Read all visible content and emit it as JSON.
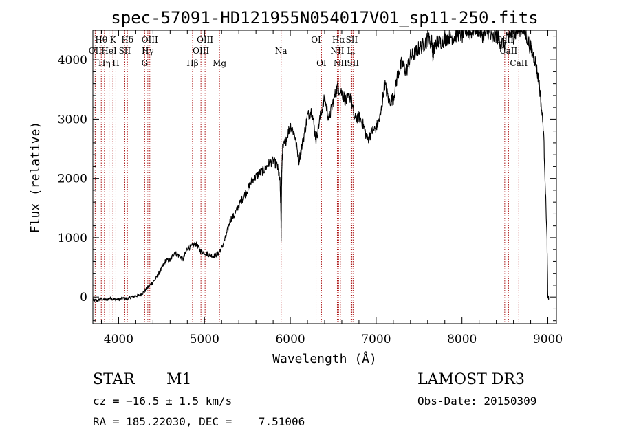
{
  "chart_data": {
    "type": "line",
    "title": "spec-57091-HD121955N054017V01_sp11-250.fits",
    "xlabel": "Wavelength (Å)",
    "ylabel": "Flux (relative)",
    "xlim": [
      3700,
      9100
    ],
    "ylim": [
      -450,
      4500
    ],
    "xticks": [
      4000,
      5000,
      6000,
      7000,
      8000,
      9000
    ],
    "yticks": [
      0,
      1000,
      2000,
      3000,
      4000
    ],
    "x_tick_labels": [
      "4000",
      "5000",
      "6000",
      "7000",
      "8000",
      "9000"
    ],
    "y_tick_labels": [
      "0",
      "1000",
      "2000",
      "3000",
      "4000"
    ],
    "spectrum": {
      "name": "flux",
      "x": [
        3700,
        3750,
        3800,
        3850,
        3900,
        3950,
        4000,
        4050,
        4100,
        4150,
        4200,
        4250,
        4300,
        4350,
        4400,
        4450,
        4500,
        4550,
        4600,
        4650,
        4700,
        4750,
        4800,
        4850,
        4900,
        4950,
        5000,
        5050,
        5100,
        5150,
        5200,
        5250,
        5300,
        5350,
        5400,
        5450,
        5500,
        5550,
        5600,
        5650,
        5700,
        5750,
        5800,
        5850,
        5880,
        5890,
        5893,
        5896,
        5900,
        5910,
        5950,
        6000,
        6050,
        6100,
        6150,
        6200,
        6250,
        6300,
        6350,
        6400,
        6450,
        6500,
        6550,
        6600,
        6650,
        6700,
        6750,
        6800,
        6850,
        6900,
        6950,
        7000,
        7050,
        7100,
        7150,
        7200,
        7250,
        7300,
        7350,
        7400,
        7450,
        7500,
        7550,
        7600,
        7650,
        7660,
        7670,
        7700,
        7750,
        7800,
        7850,
        7900,
        7950,
        8000,
        8050,
        8100,
        8150,
        8200,
        8250,
        8300,
        8350,
        8400,
        8450,
        8500,
        8550,
        8600,
        8650,
        8700,
        8750,
        8800,
        8850,
        8900,
        8950,
        8990,
        9000,
        9005,
        9010
      ],
      "y": [
        -50,
        -60,
        -30,
        -50,
        -20,
        -40,
        -40,
        -20,
        -30,
        0,
        20,
        30,
        90,
        180,
        250,
        350,
        480,
        620,
        620,
        750,
        700,
        630,
        820,
        850,
        900,
        780,
        750,
        720,
        690,
        720,
        820,
        1020,
        1300,
        1380,
        1550,
        1680,
        1800,
        1950,
        2030,
        2100,
        2150,
        2250,
        2300,
        2200,
        1950,
        1400,
        950,
        1500,
        2100,
        2500,
        2650,
        2900,
        2750,
        2300,
        2650,
        3050,
        3150,
        2650,
        3050,
        3350,
        3000,
        3300,
        3550,
        3450,
        3300,
        3400,
        3000,
        3050,
        2900,
        2650,
        2800,
        2850,
        3050,
        3600,
        3300,
        3350,
        3750,
        3950,
        3800,
        4050,
        4100,
        4200,
        4250,
        4350,
        4300,
        4100,
        4150,
        4300,
        4300,
        4350,
        4400,
        4380,
        4450,
        4400,
        4500,
        4450,
        4550,
        4500,
        4400,
        4480,
        4350,
        4420,
        4300,
        4250,
        4450,
        4400,
        4500,
        4550,
        4400,
        4200,
        4000,
        3600,
        2800,
        1000,
        0,
        0,
        -20
      ]
    },
    "emission_lines": [
      {
        "name": "Hθ",
        "wavelength": 3798,
        "row": 1
      },
      {
        "name": "OII",
        "wavelength": 3727,
        "row": 2
      },
      {
        "name": "Hη",
        "wavelength": 3835,
        "row": 3
      },
      {
        "name": "HeI",
        "wavelength": 3889,
        "row": 2
      },
      {
        "name": "K",
        "wavelength": 3934,
        "row": 1
      },
      {
        "name": "SII",
        "wavelength": 4072,
        "row": 2
      },
      {
        "name": "H",
        "wavelength": 3968,
        "row": 3
      },
      {
        "name": "Hδ",
        "wavelength": 4102,
        "row": 1
      },
      {
        "name": "OIII",
        "wavelength": 4363,
        "row": 1
      },
      {
        "name": "Hγ",
        "wavelength": 4340,
        "row": 2
      },
      {
        "name": "G",
        "wavelength": 4304,
        "row": 3
      },
      {
        "name": "Hβ",
        "wavelength": 4861,
        "row": 3
      },
      {
        "name": "OIII",
        "wavelength": 5007,
        "row": 1
      },
      {
        "name": "OIII",
        "wavelength": 4959,
        "row": 2
      },
      {
        "name": "Mg",
        "wavelength": 5175,
        "row": 3
      },
      {
        "name": "Na",
        "wavelength": 5893,
        "row": 2
      },
      {
        "name": "OI",
        "wavelength": 6300,
        "row": 1
      },
      {
        "name": "OI",
        "wavelength": 6363,
        "row": 3
      },
      {
        "name": "Hα",
        "wavelength": 6563,
        "row": 1
      },
      {
        "name": "NII",
        "wavelength": 6548,
        "row": 2
      },
      {
        "name": "NII",
        "wavelength": 6583,
        "row": 3
      },
      {
        "name": "SII",
        "wavelength": 6716,
        "row": 1
      },
      {
        "name": "Li",
        "wavelength": 6708,
        "row": 2
      },
      {
        "name": "SII",
        "wavelength": 6731,
        "row": 3
      },
      {
        "name": "CaII",
        "wavelength": 8498,
        "row": 1
      },
      {
        "name": "CaII",
        "wavelength": 8542,
        "row": 2
      },
      {
        "name": "CaII",
        "wavelength": 8662,
        "row": 3
      }
    ],
    "grid": false,
    "colors": {
      "spectrum": "#000000",
      "line_markers": "#aa1010",
      "axes": "#000000"
    }
  },
  "info": {
    "class": "STAR",
    "subclass": "M1",
    "survey": "LAMOST DR3",
    "cz": "cz = −16.5 ± 1.5 km/s",
    "obs_date": "Obs-Date: 20150309",
    "radec": "RA = 185.22030, DEC =    7.51006"
  }
}
